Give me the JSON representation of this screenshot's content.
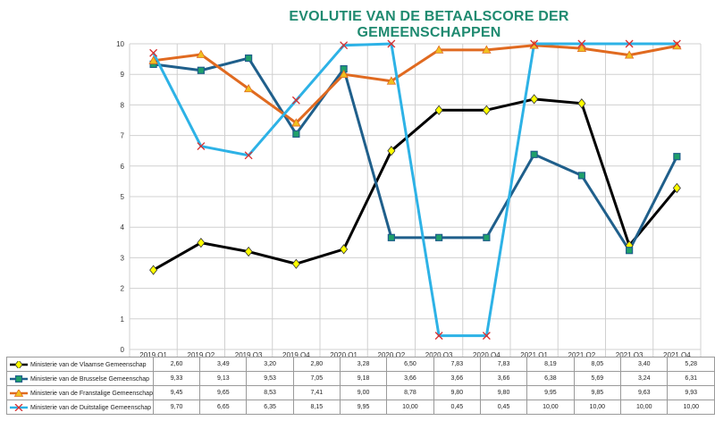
{
  "chart_data": {
    "type": "line",
    "title": "EVOLUTIE VAN DE BETAALSCORE DER GEMEENSCHAPPEN",
    "categories": [
      "2019 Q1",
      "2019 Q2",
      "2019 Q3",
      "2019 Q4",
      "2020 Q1",
      "2020 Q2",
      "2020 Q3",
      "2020 Q4",
      "2021 Q1",
      "2021 Q2",
      "2021 Q3",
      "2021 Q4"
    ],
    "ylim": [
      0,
      10
    ],
    "yticks": [
      "0",
      "1",
      "2",
      "3",
      "4",
      "5",
      "6",
      "7",
      "8",
      "9",
      "10"
    ],
    "grid": true,
    "legend_placement": "data table below chart",
    "series": [
      {
        "name": "Ministerie van de Vlaamse Gemeenschap",
        "values": [
          2.6,
          3.49,
          3.2,
          2.8,
          3.28,
          6.5,
          7.83,
          7.83,
          8.19,
          8.05,
          3.4,
          5.28
        ],
        "labels": [
          "2,60",
          "3,49",
          "3,20",
          "2,80",
          "3,28",
          "6,50",
          "7,83",
          "7,83",
          "8,19",
          "8,05",
          "3,40",
          "5,28"
        ],
        "color": "#000000",
        "marker": "diamond",
        "marker_color": "#ffff00"
      },
      {
        "name": "Ministerie van de Brusselse Gemeenschap",
        "values": [
          9.33,
          9.13,
          9.53,
          7.05,
          9.18,
          3.66,
          3.66,
          3.66,
          6.38,
          5.69,
          3.24,
          6.31
        ],
        "labels": [
          "9,33",
          "9,13",
          "9,53",
          "7,05",
          "9,18",
          "3,66",
          "3,66",
          "3,66",
          "6,38",
          "5,69",
          "3,24",
          "6,31"
        ],
        "color": "#1f5f8b",
        "marker": "square",
        "marker_color": "#1fa06a"
      },
      {
        "name": "Ministerie van de Franstalige Gemeenschap",
        "values": [
          9.45,
          9.65,
          8.53,
          7.41,
          9.0,
          8.78,
          9.8,
          9.8,
          9.95,
          9.85,
          9.63,
          9.93
        ],
        "labels": [
          "9,45",
          "9,65",
          "8,53",
          "7,41",
          "9,00",
          "8,78",
          "9,80",
          "9,80",
          "9,95",
          "9,85",
          "9,63",
          "9,93"
        ],
        "color": "#e06a20",
        "marker": "triangle",
        "marker_color": "#f0c020"
      },
      {
        "name": "Ministerie van de Duitstalige Gemeenschap",
        "values": [
          9.7,
          6.65,
          6.35,
          8.15,
          9.95,
          10.0,
          0.45,
          0.45,
          10.0,
          10.0,
          10.0,
          10.0
        ],
        "labels": [
          "9,70",
          "6,65",
          "6,35",
          "8,15",
          "9,95",
          "10,00",
          "0,45",
          "0,45",
          "10,00",
          "10,00",
          "10,00",
          "10,00"
        ],
        "color": "#2db2e6",
        "marker": "x",
        "marker_color": "#d83030"
      }
    ]
  }
}
